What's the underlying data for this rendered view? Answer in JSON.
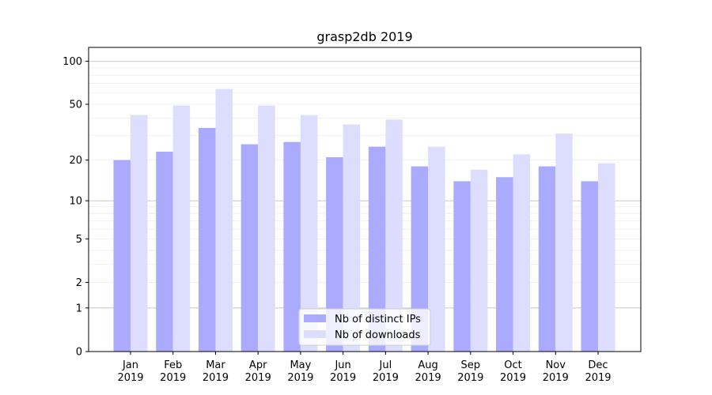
{
  "chart_data": {
    "type": "bar",
    "title": "grasp2db 2019",
    "xlabel": "",
    "ylabel": "",
    "yscale": "log10(1+y)",
    "ylim": [
      0,
      125
    ],
    "yticks": [
      0,
      1,
      2,
      5,
      10,
      20,
      50,
      100
    ],
    "grid": true,
    "legend_position": "lower center",
    "categories": [
      "Jan\n2019",
      "Feb\n2019",
      "Mar\n2019",
      "Apr\n2019",
      "May\n2019",
      "Jun\n2019",
      "Jul\n2019",
      "Aug\n2019",
      "Sep\n2019",
      "Oct\n2019",
      "Nov\n2019",
      "Dec\n2019"
    ],
    "series": [
      {
        "name": "Nb of distinct IPs",
        "color": "#aaaaff",
        "values": [
          20,
          23,
          34,
          26,
          27,
          21,
          25,
          18,
          14,
          15,
          18,
          14
        ]
      },
      {
        "name": "Nb of downloads",
        "color": "#ddddff",
        "values": [
          42,
          49,
          64,
          49,
          42,
          36,
          39,
          25,
          17,
          22,
          31,
          19
        ]
      }
    ]
  }
}
